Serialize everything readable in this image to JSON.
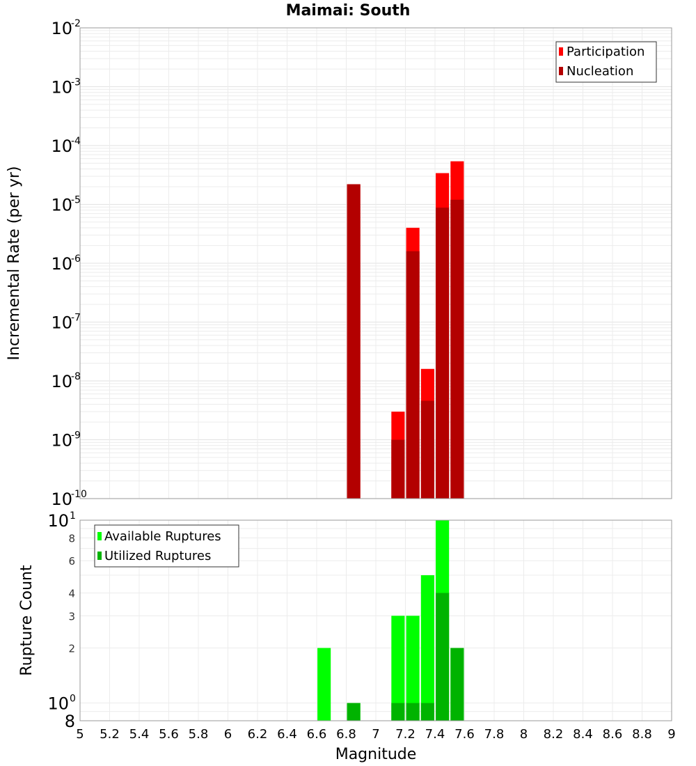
{
  "chart_data": [
    {
      "type": "bar",
      "title": "Maimai: South",
      "ylabel": "Incremental Rate (per yr)",
      "xlabel": "",
      "yscale": "log",
      "xlim": [
        5,
        9
      ],
      "ylim": [
        1e-10,
        0.01
      ],
      "grid": true,
      "legend_position": "top-right",
      "y_ticks": [
        {
          "base": "10",
          "exp": "-2"
        },
        {
          "base": "10",
          "exp": "-3"
        },
        {
          "base": "10",
          "exp": "-4"
        },
        {
          "base": "10",
          "exp": "-5"
        },
        {
          "base": "10",
          "exp": "-6"
        },
        {
          "base": "10",
          "exp": "-7"
        },
        {
          "base": "10",
          "exp": "-8"
        },
        {
          "base": "10",
          "exp": "-9"
        },
        {
          "base": "10",
          "exp": "-10"
        }
      ],
      "bar_width": 0.09,
      "series": [
        {
          "name": "Participation",
          "color": "#ff0000",
          "x": [
            6.85,
            7.15,
            7.25,
            7.35,
            7.45,
            7.55
          ],
          "values": [
            2.2e-05,
            3e-09,
            4e-06,
            1.6e-08,
            3.4e-05,
            5.4e-05
          ]
        },
        {
          "name": "Nucleation",
          "color": "#b30000",
          "x": [
            6.85,
            7.15,
            7.25,
            7.35,
            7.45,
            7.55
          ],
          "values": [
            2.2e-05,
            1e-09,
            1.6e-06,
            4.6e-09,
            8.8e-06,
            1.2e-05
          ]
        }
      ]
    },
    {
      "type": "bar",
      "title": "",
      "ylabel": "Rupture Count",
      "xlabel": "Magnitude",
      "yscale": "log",
      "xlim": [
        5,
        9
      ],
      "ylim": [
        0.8,
        10
      ],
      "grid": true,
      "legend_position": "top-left",
      "x_ticks": [
        "5",
        "5.2",
        "5.4",
        "5.6",
        "5.8",
        "6",
        "6.2",
        "6.4",
        "6.6",
        "6.8",
        "7",
        "7.2",
        "7.4",
        "7.6",
        "7.8",
        "8",
        "8.2",
        "8.4",
        "8.6",
        "8.8",
        "9"
      ],
      "y_major_ticks": [
        {
          "base": "10",
          "exp": "1",
          "value": 10
        },
        {
          "base": "10",
          "exp": "0",
          "value": 1
        }
      ],
      "y_minor_ticks": [
        "8",
        "6",
        "4",
        "3",
        "2"
      ],
      "y_bottom_label": "8",
      "bar_width": 0.09,
      "series": [
        {
          "name": "Available Ruptures",
          "color": "#00ff00",
          "x": [
            6.65,
            6.85,
            7.15,
            7.25,
            7.35,
            7.45,
            7.55
          ],
          "values": [
            2,
            1,
            3,
            3,
            5,
            10,
            2
          ]
        },
        {
          "name": "Utilized Ruptures",
          "color": "#00b300",
          "x": [
            6.85,
            7.15,
            7.25,
            7.35,
            7.45,
            7.55
          ],
          "values": [
            1,
            1,
            1,
            1,
            4,
            2
          ]
        }
      ]
    }
  ]
}
